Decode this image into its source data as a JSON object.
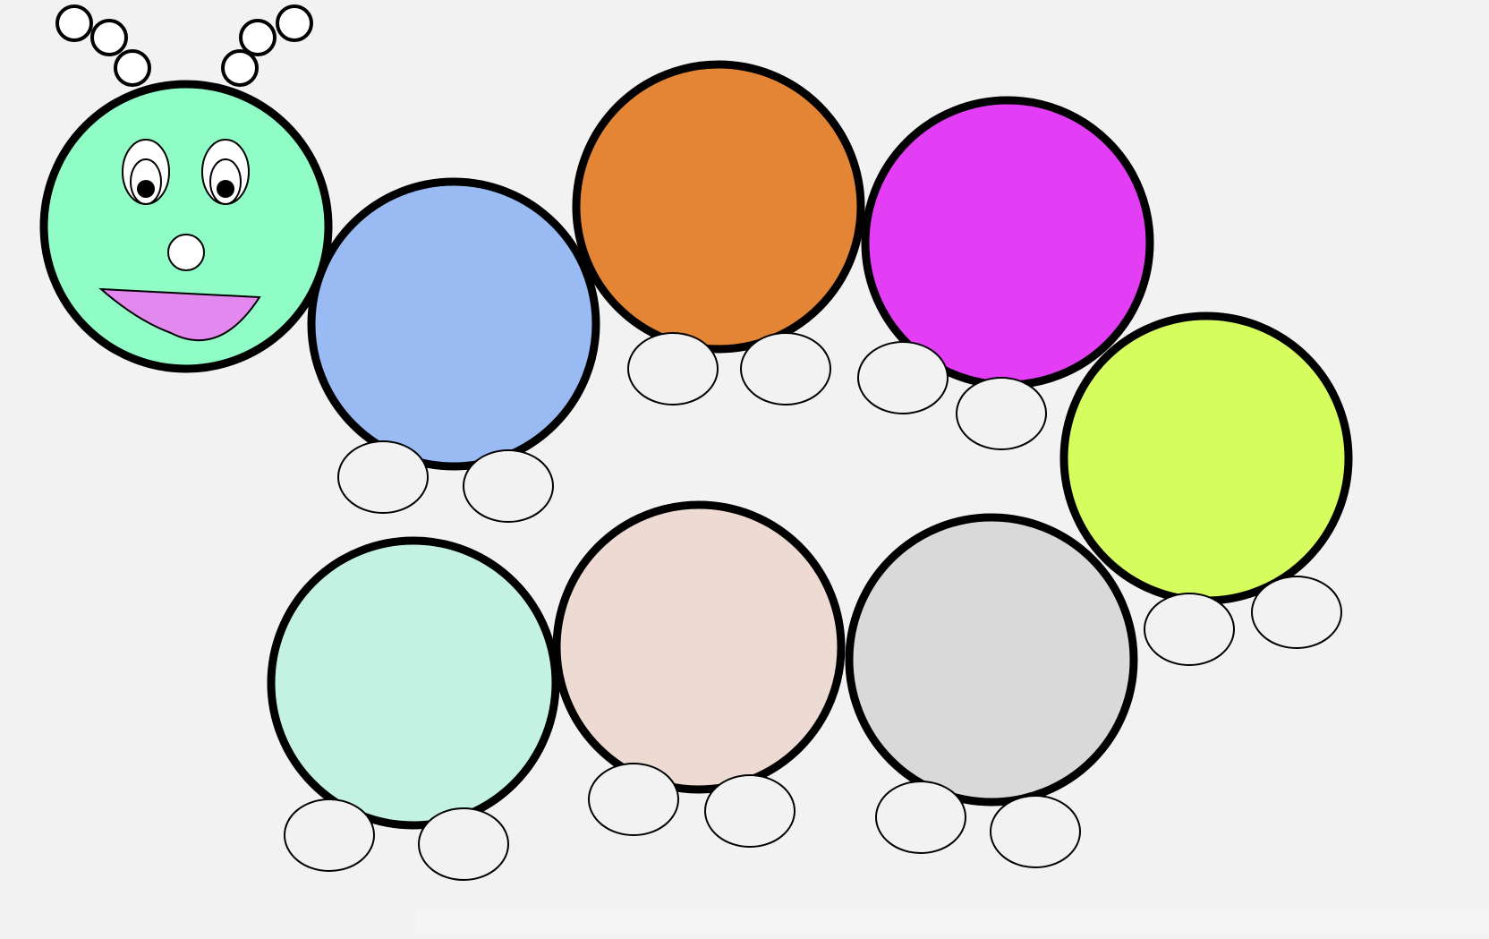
{
  "scene": {
    "background_color": "#f2f2f2",
    "outline_color": "#000000",
    "foot_color": "#f2f2f2"
  },
  "caterpillar": {
    "head": {
      "color": "#90fcc6",
      "antenna_ball_color": "#ffffff",
      "eye_white_color": "#ffffff",
      "pupil_color": "#000000",
      "nose_color": "#ffffff",
      "mouth_color": "#e288ef"
    },
    "body_segments": [
      {
        "color": "#99baf2"
      },
      {
        "color": "#e38535"
      },
      {
        "color": "#e33df5"
      },
      {
        "color": "#d5fd5e"
      },
      {
        "color": "#d9d9d9"
      },
      {
        "color": "#eddad3"
      },
      {
        "color": "#c3f2e3"
      }
    ]
  }
}
